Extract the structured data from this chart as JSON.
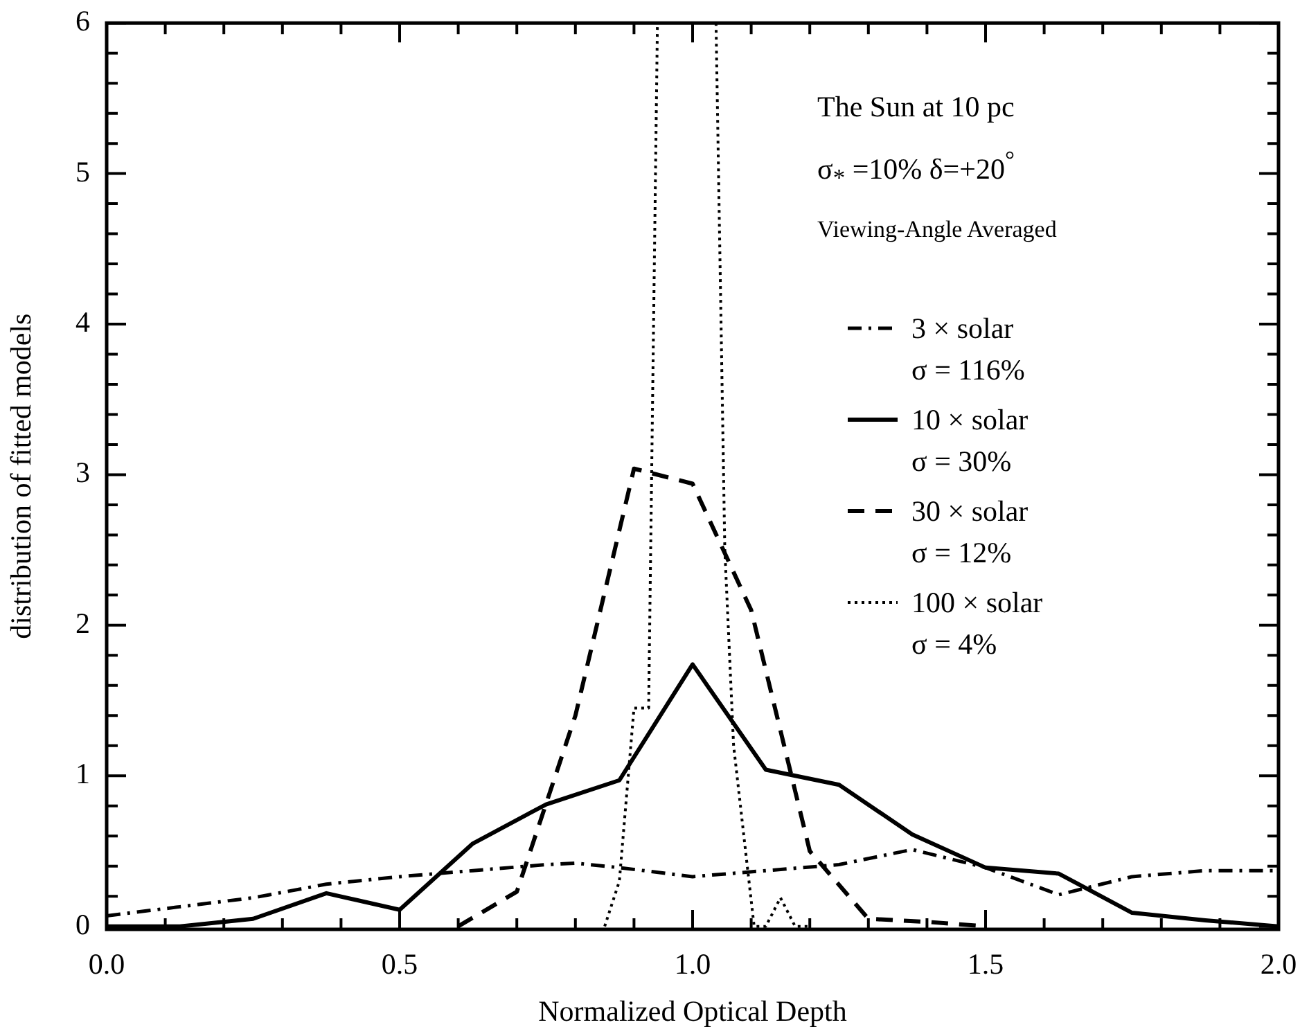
{
  "chart_data": {
    "type": "line",
    "xlabel": "Normalized Optical Depth",
    "ylabel": "distribution of fitted models",
    "annotations": [
      "The Sun at 10 pc",
      "σ$_{*}$ =10% δ=+20$^{°}$",
      "Viewing-Angle Averaged"
    ],
    "xlim": [
      0,
      2
    ],
    "ylim": [
      -0.02,
      6
    ],
    "xticks": [
      {
        "value": 0,
        "label": "0.0"
      },
      {
        "value": 0.1,
        "label": null
      },
      {
        "value": 0.2,
        "label": null
      },
      {
        "value": 0.3,
        "label": null
      },
      {
        "value": 0.4,
        "label": null
      },
      {
        "value": 0.5,
        "label": "0.5"
      },
      {
        "value": 0.6,
        "label": null
      },
      {
        "value": 0.7,
        "label": null
      },
      {
        "value": 0.8,
        "label": null
      },
      {
        "value": 0.9,
        "label": null
      },
      {
        "value": 1,
        "label": "1.0"
      },
      {
        "value": 1.1,
        "label": null
      },
      {
        "value": 1.2,
        "label": null
      },
      {
        "value": 1.3,
        "label": null
      },
      {
        "value": 1.4,
        "label": null
      },
      {
        "value": 1.5,
        "label": "1.5"
      },
      {
        "value": 1.6,
        "label": null
      },
      {
        "value": 1.7,
        "label": null
      },
      {
        "value": 1.8,
        "label": null
      },
      {
        "value": 1.9,
        "label": null
      },
      {
        "value": 2,
        "label": "2.0"
      }
    ],
    "yticks": [
      0,
      {
        "value": 0.2,
        "label": null
      },
      {
        "value": 0.4,
        "label": null
      },
      {
        "value": 0.6,
        "label": null
      },
      {
        "value": 0.8,
        "label": null
      },
      1,
      {
        "value": 1.2,
        "label": null
      },
      {
        "value": 1.4,
        "label": null
      },
      {
        "value": 1.6,
        "label": null
      },
      {
        "value": 1.8,
        "label": null
      },
      2,
      {
        "value": 2.2,
        "label": null
      },
      {
        "value": 2.4,
        "label": null
      },
      {
        "value": 2.6,
        "label": null
      },
      {
        "value": 2.8,
        "label": null
      },
      3,
      {
        "value": 3.2,
        "label": null
      },
      {
        "value": 3.4,
        "label": null
      },
      {
        "value": 3.6,
        "label": null
      },
      {
        "value": 3.8,
        "label": null
      },
      4,
      {
        "value": 4.2,
        "label": null
      },
      {
        "value": 4.4,
        "label": null
      },
      {
        "value": 4.6,
        "label": null
      },
      {
        "value": 4.8,
        "label": null
      },
      5,
      {
        "value": 5.2,
        "label": null
      },
      {
        "value": 5.4,
        "label": null
      },
      {
        "value": 5.6,
        "label": null
      },
      {
        "value": 5.8,
        "label": null
      },
      6
    ],
    "grid": false,
    "legend": "right",
    "marker": "none",
    "series": [
      {
        "name": "3 × solar\nσ = 116%",
        "color": "#000000",
        "line_style": "dashdot",
        "x": [
          0,
          0.125,
          0.25,
          0.375,
          0.5,
          0.625,
          0.75,
          0.8,
          0.875,
          1,
          1.125,
          1.25,
          1.375,
          1.5,
          1.625,
          1.75,
          1.875,
          2
        ],
        "values": [
          0.07,
          0.13,
          0.19,
          0.28,
          0.33,
          0.37,
          0.41,
          0.42,
          0.39,
          0.33,
          0.37,
          0.41,
          0.51,
          0.39,
          0.21,
          0.33,
          0.37,
          0.37
        ]
      },
      {
        "name": "10 × solar\nσ = 30%",
        "color": "#000000",
        "line_style": "solid",
        "x": [
          0,
          0.125,
          0.25,
          0.375,
          0.5,
          0.625,
          0.75,
          0.875,
          1,
          1.125,
          1.25,
          1.375,
          1.5,
          1.625,
          1.75,
          1.875,
          2
        ],
        "values": [
          0,
          0,
          0.05,
          0.22,
          0.11,
          0.55,
          0.81,
          0.97,
          1.74,
          1.04,
          0.94,
          0.61,
          0.39,
          0.35,
          0.09,
          0.04,
          0
        ]
      },
      {
        "name": "30 × solar\nσ = 12%",
        "color": "#000000",
        "line_style": "dashed",
        "x": [
          0.6,
          0.7,
          0.8,
          0.9,
          1,
          1.1,
          1.2,
          1.3,
          1.4,
          1.5
        ],
        "values": [
          0,
          0.23,
          1.4,
          3.04,
          2.94,
          2.1,
          0.5,
          0.05,
          0.03,
          0
        ]
      },
      {
        "name": "100 × solar\nσ = 4%",
        "color": "#000000",
        "line_style": "dotted",
        "x": [
          0.85,
          0.875,
          0.9,
          0.925,
          0.94,
          0.99,
          1.04,
          1.055,
          1.07,
          1.105,
          1.125,
          1.15,
          1.175,
          1.2
        ],
        "values": [
          0,
          0.3,
          1.45,
          1.45,
          6,
          null,
          6,
          2.5,
          1.2,
          0,
          0,
          0.19,
          0,
          0
        ]
      }
    ]
  }
}
